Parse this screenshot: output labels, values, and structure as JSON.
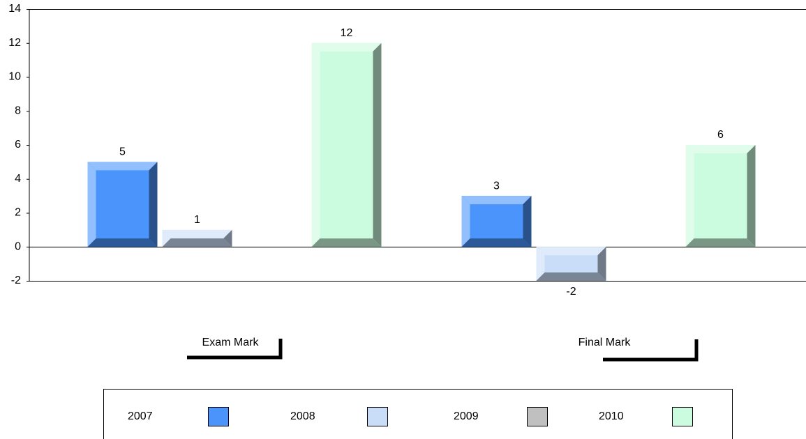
{
  "chart_data": {
    "type": "bar",
    "categories": [
      "Exam Mark",
      "Final Mark"
    ],
    "series": [
      {
        "name": "2007",
        "color": "#4a94fb",
        "values": [
          5,
          3
        ]
      },
      {
        "name": "2008",
        "color": "#c9dcf8",
        "values": [
          1,
          -2
        ]
      },
      {
        "name": "2009",
        "color": "#c0c0c0",
        "values": [
          null,
          null
        ]
      },
      {
        "name": "2010",
        "color": "#ccfce0",
        "values": [
          12,
          6
        ]
      }
    ],
    "ylim": [
      -2,
      14
    ],
    "yticks": [
      -2,
      0,
      2,
      4,
      6,
      8,
      10,
      12,
      14
    ],
    "legend": "bottom"
  }
}
